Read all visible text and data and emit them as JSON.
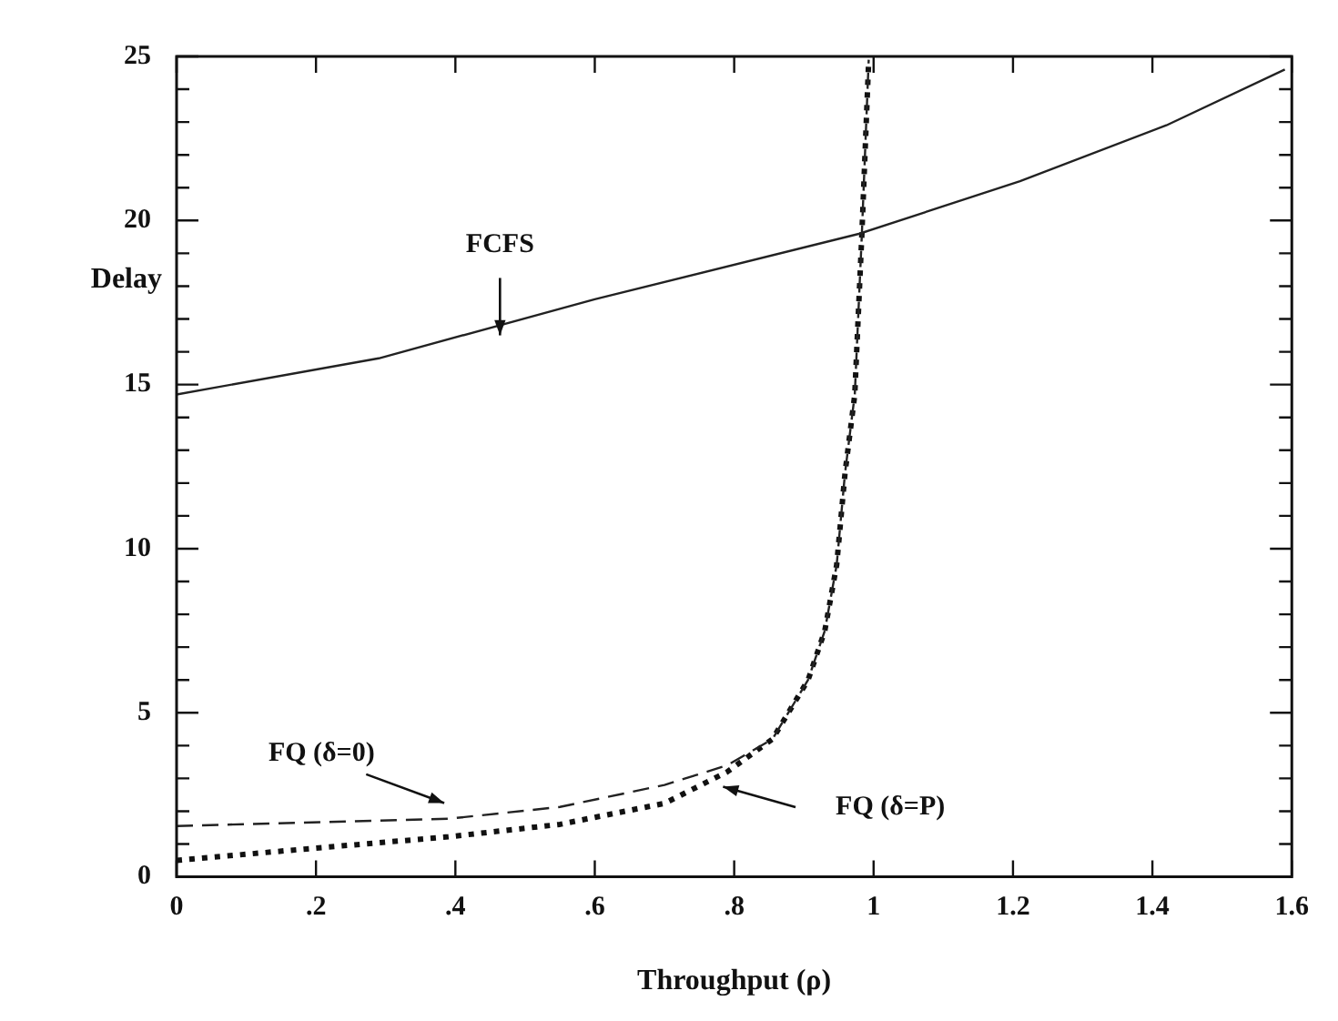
{
  "chart_data": {
    "type": "line",
    "xlabel": "Throughput (ρ)",
    "ylabel": "Delay",
    "xlim": [
      0,
      1.6
    ],
    "ylim": [
      0,
      25
    ],
    "xticks": [
      0,
      {
        "value": 0.2,
        "label": ".2"
      },
      {
        "value": 0.4,
        "label": ".4"
      },
      {
        "value": 0.6,
        "label": ".6"
      },
      {
        "value": 0.8,
        "label": ".8"
      },
      1,
      1.2,
      1.4,
      1.6
    ],
    "yticks": [
      0,
      {
        "value": 1,
        "label": null
      },
      {
        "value": 2,
        "label": null
      },
      {
        "value": 3,
        "label": null
      },
      {
        "value": 4,
        "label": null
      },
      5,
      {
        "value": 6,
        "label": null
      },
      {
        "value": 7,
        "label": null
      },
      {
        "value": 8,
        "label": null
      },
      {
        "value": 9,
        "label": null
      },
      10,
      {
        "value": 11,
        "label": null
      },
      {
        "value": 12,
        "label": null
      },
      {
        "value": 13,
        "label": null
      },
      {
        "value": 14,
        "label": null
      },
      15,
      {
        "value": 16,
        "label": null
      },
      {
        "value": 17,
        "label": null
      },
      {
        "value": 18,
        "label": null
      },
      {
        "value": 19,
        "label": null
      },
      20,
      {
        "value": 21,
        "label": null
      },
      {
        "value": 22,
        "label": null
      },
      {
        "value": 23,
        "label": null
      },
      {
        "value": 24,
        "label": null
      },
      25
    ],
    "grid": false,
    "legend": false,
    "marker": "none",
    "series": [
      {
        "color": "#222222",
        "line_style": "solid",
        "x": [
          0,
          0.29,
          0.6,
          0.98,
          1.21,
          1.42,
          1.59
        ],
        "values": [
          14.7,
          15.8,
          17.6,
          19.6,
          21.2,
          22.9,
          24.6
        ]
      },
      {
        "color": "#222222",
        "line_style": "dashed",
        "x": [
          0,
          0.39,
          0.55,
          0.7,
          0.79,
          0.855,
          0.906,
          0.93,
          0.947,
          0.959,
          0.973,
          0.983,
          0.993
        ],
        "values": [
          1.55,
          1.77,
          2.13,
          2.8,
          3.4,
          4.2,
          6.0,
          7.5,
          9.5,
          12.3,
          14.7,
          19.5,
          24.9
        ]
      },
      {
        "color": "#111111",
        "line_style": "dotted",
        "x": [
          0,
          0.18,
          0.39,
          0.55,
          0.7,
          0.79,
          0.855,
          0.906,
          0.93,
          0.947,
          0.959,
          0.973,
          0.983,
          0.993
        ],
        "values": [
          0.5,
          0.84,
          1.22,
          1.6,
          2.24,
          3.2,
          4.2,
          6.0,
          7.5,
          9.5,
          12.3,
          14.7,
          19.5,
          24.9
        ]
      }
    ],
    "annotations": [
      "FCFS",
      "FQ (δ=0)",
      "FQ (δ=P)"
    ]
  }
}
